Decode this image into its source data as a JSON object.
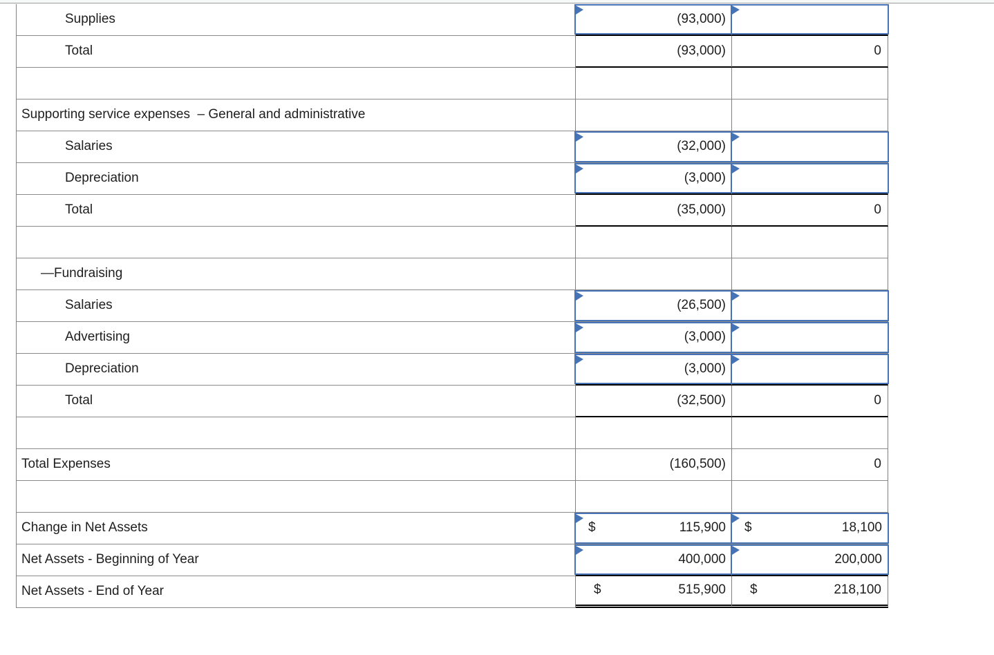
{
  "colors": {
    "input_border_blue": "#4573b6",
    "grid_gray": "#7f7f7f",
    "rule_black": "#000000",
    "text": "#1e1e1e",
    "top_strip_bg": "#f7f8f8"
  },
  "table": {
    "columns": [
      "label",
      "amount_col_1",
      "amount_col_2"
    ],
    "rows": [
      {
        "label": "Supplies",
        "indent": 2,
        "c1": {
          "kind": "input",
          "value": "(93,000)"
        },
        "c2": {
          "kind": "input",
          "value": ""
        }
      },
      {
        "label": "Total",
        "indent": 2,
        "c1": {
          "kind": "total",
          "value": "(93,000)"
        },
        "c2": {
          "kind": "total",
          "value": "0"
        }
      },
      {
        "label": "",
        "indent": 0,
        "c1": {
          "kind": "plain",
          "value": ""
        },
        "c2": {
          "kind": "plain",
          "value": ""
        }
      },
      {
        "label": "Supporting service expenses  – General and administrative",
        "indent": 0,
        "c1": {
          "kind": "plain",
          "value": ""
        },
        "c2": {
          "kind": "plain",
          "value": ""
        }
      },
      {
        "label": "Salaries",
        "indent": 2,
        "c1": {
          "kind": "input",
          "value": "(32,000)"
        },
        "c2": {
          "kind": "input",
          "value": ""
        }
      },
      {
        "label": "Depreciation",
        "indent": 2,
        "c1": {
          "kind": "input",
          "value": "(3,000)"
        },
        "c2": {
          "kind": "input",
          "value": ""
        }
      },
      {
        "label": "Total",
        "indent": 2,
        "c1": {
          "kind": "total",
          "value": "(35,000)"
        },
        "c2": {
          "kind": "total",
          "value": "0"
        }
      },
      {
        "label": "",
        "indent": 0,
        "c1": {
          "kind": "plain",
          "value": ""
        },
        "c2": {
          "kind": "plain",
          "value": ""
        }
      },
      {
        "label": "—Fundraising",
        "indent": 1,
        "c1": {
          "kind": "plain",
          "value": ""
        },
        "c2": {
          "kind": "plain",
          "value": ""
        }
      },
      {
        "label": "Salaries",
        "indent": 2,
        "c1": {
          "kind": "input",
          "value": "(26,500)"
        },
        "c2": {
          "kind": "input",
          "value": ""
        }
      },
      {
        "label": "Advertising",
        "indent": 2,
        "c1": {
          "kind": "input",
          "value": "(3,000)"
        },
        "c2": {
          "kind": "input",
          "value": ""
        }
      },
      {
        "label": "Depreciation",
        "indent": 2,
        "c1": {
          "kind": "input",
          "value": "(3,000)"
        },
        "c2": {
          "kind": "input",
          "value": ""
        }
      },
      {
        "label": "Total",
        "indent": 2,
        "c1": {
          "kind": "total",
          "value": "(32,500)"
        },
        "c2": {
          "kind": "total",
          "value": "0"
        }
      },
      {
        "label": "",
        "indent": 0,
        "c1": {
          "kind": "plain",
          "value": ""
        },
        "c2": {
          "kind": "plain",
          "value": ""
        }
      },
      {
        "label": "Total Expenses",
        "indent": 0,
        "c1": {
          "kind": "plain",
          "value": "(160,500)"
        },
        "c2": {
          "kind": "plain",
          "value": "0"
        }
      },
      {
        "label": "",
        "indent": 0,
        "c1": {
          "kind": "plain",
          "value": ""
        },
        "c2": {
          "kind": "plain",
          "value": ""
        }
      },
      {
        "label": "Change in Net Assets",
        "indent": 0,
        "c1": {
          "kind": "input",
          "prefix": "$",
          "value": "115,900"
        },
        "c2": {
          "kind": "input",
          "prefix": "$",
          "value": "18,100"
        }
      },
      {
        "label": "Net Assets - Beginning of Year",
        "indent": 0,
        "c1": {
          "kind": "input",
          "value": "400,000"
        },
        "c2": {
          "kind": "input",
          "value": "200,000"
        }
      },
      {
        "label": "Net Assets - End of Year",
        "indent": 0,
        "c1": {
          "kind": "grand",
          "prefix": "$",
          "value": "515,900"
        },
        "c2": {
          "kind": "grand",
          "prefix": "$",
          "value": "218,100"
        }
      }
    ]
  }
}
